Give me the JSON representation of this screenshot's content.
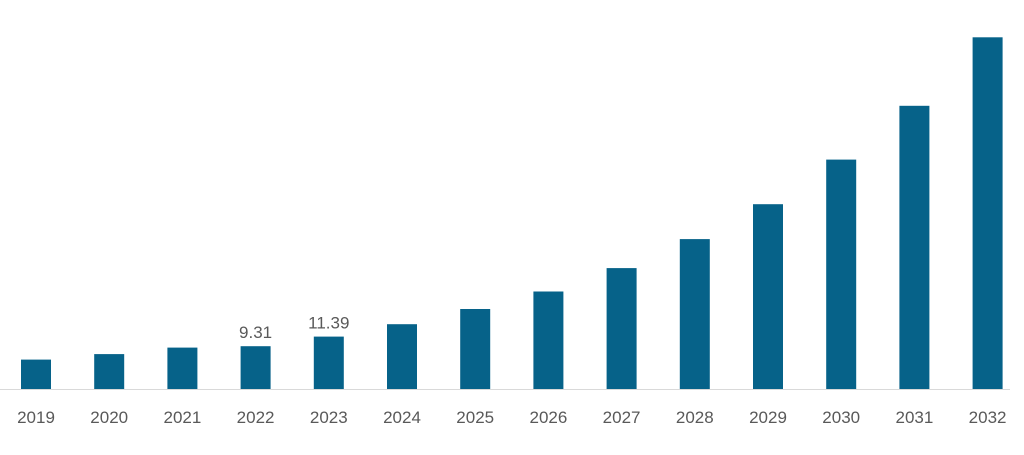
{
  "chart_data": {
    "type": "bar",
    "title": "",
    "xlabel": "",
    "ylabel": "",
    "categories": [
      "2019",
      "2020",
      "2021",
      "2022",
      "2023",
      "2024",
      "2025",
      "2026",
      "2027",
      "2028",
      "2029",
      "2030",
      "2031",
      "2032"
    ],
    "series": [
      {
        "values": [
          6.4,
          7.6,
          9.0,
          9.31,
          11.39,
          14.1,
          17.4,
          21.2,
          26.3,
          32.6,
          40.2,
          49.9,
          61.6,
          76.5
        ],
        "color": "#066289"
      }
    ],
    "data_labels": [
      {
        "category": "2022",
        "text": "9.31"
      },
      {
        "category": "2023",
        "text": "11.39"
      }
    ],
    "ylim": [
      0,
      77
    ],
    "grid": false,
    "legend": "none"
  }
}
